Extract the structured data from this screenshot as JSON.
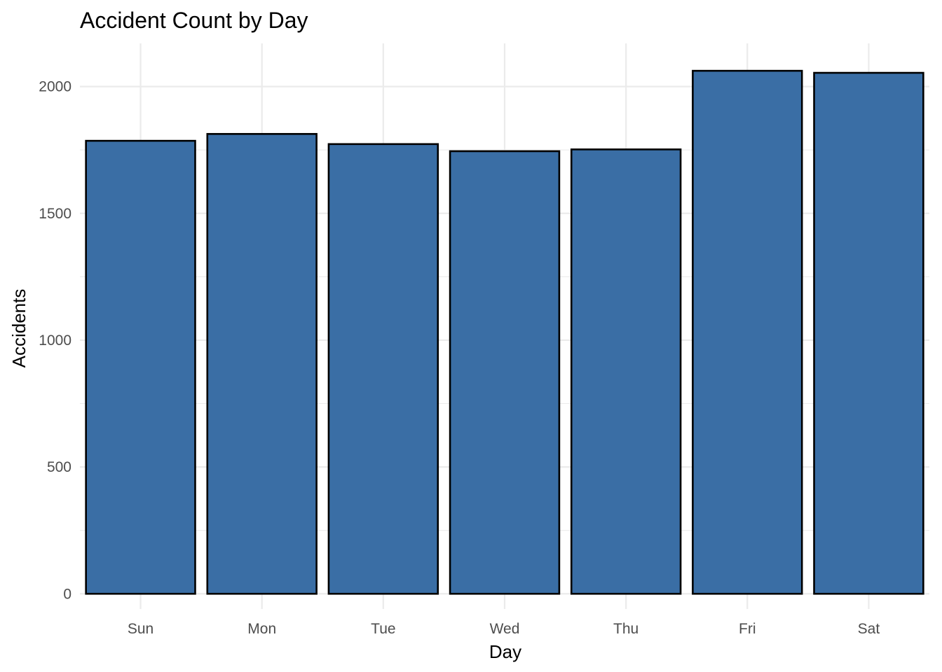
{
  "chart_data": {
    "type": "bar",
    "title": "Accident Count by Day",
    "xlabel": "Day",
    "ylabel": "Accidents",
    "categories": [
      "Sun",
      "Mon",
      "Tue",
      "Wed",
      "Thu",
      "Fri",
      "Sat"
    ],
    "values": [
      1786,
      1813,
      1773,
      1745,
      1752,
      2062,
      2054
    ],
    "ylim": [
      -60,
      2170
    ],
    "yticks": [
      0,
      500,
      1000,
      1500,
      2000
    ],
    "grid": true,
    "bar_color": "#3A6EA5",
    "bar_outline_color": "#000000",
    "grid_color": "#EBEBEB",
    "tick_label_color": "#4D4D4D"
  }
}
